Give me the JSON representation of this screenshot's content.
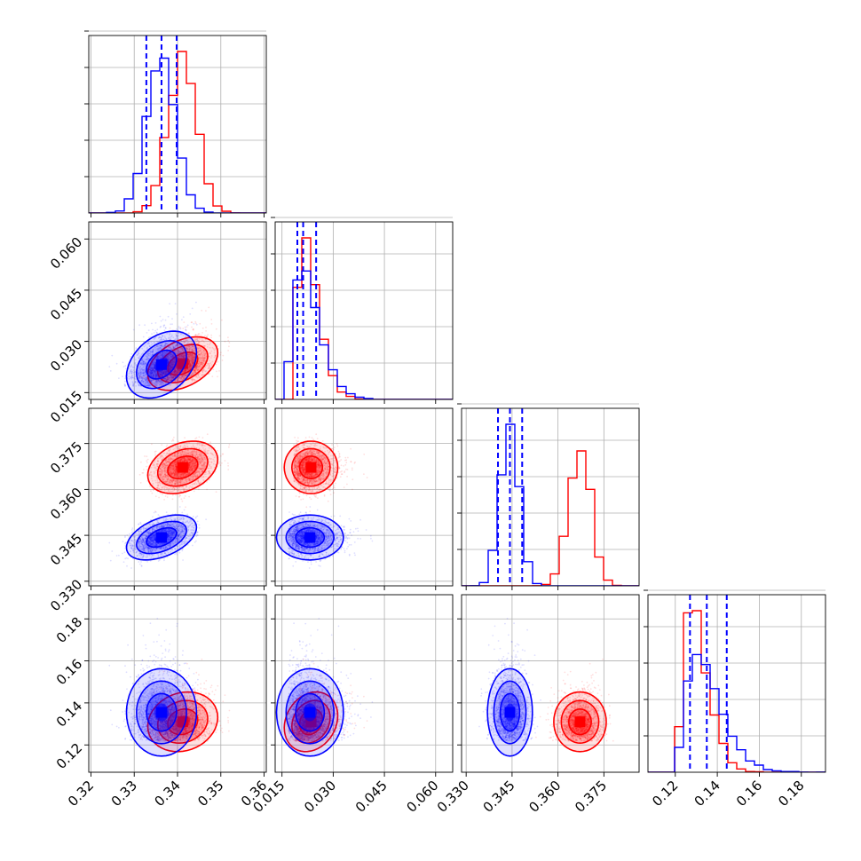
{
  "chart_data": {
    "type": "corner",
    "title": "",
    "colors": {
      "red": "#ff0000",
      "blue": "#0000ff"
    },
    "grid": true,
    "legend": "none",
    "series": [
      {
        "color": "#ff0000",
        "mean": [
          0.3412,
          0.0235,
          0.3672,
          0.131
        ],
        "std": [
          0.0033,
          0.0032,
          0.0035,
          0.0058
        ],
        "corr": [
          [
            1.0,
            0.4,
            0.3,
            0.15
          ],
          [
            0.4,
            1.0,
            0.0,
            0.2
          ],
          [
            0.3,
            0.0,
            1.0,
            0.0
          ],
          [
            0.15,
            0.2,
            0.0,
            1.0
          ]
        ]
      },
      {
        "color": "#0000ff",
        "mean": [
          0.3363,
          0.0232,
          0.3443,
          0.1355
        ],
        "std": [
          0.0033,
          0.004,
          0.003,
          0.0085
        ],
        "corr": [
          [
            1.0,
            0.35,
            0.45,
            0.0
          ],
          [
            0.35,
            1.0,
            0.0,
            0.0
          ],
          [
            0.45,
            0.0,
            1.0,
            0.0
          ],
          [
            0.0,
            0.0,
            0.0,
            1.0
          ]
        ]
      }
    ],
    "quantile_lines": [
      [
        0.3328,
        0.3363,
        0.3398
      ],
      [
        0.0195,
        0.0212,
        0.025
      ],
      [
        0.3404,
        0.3443,
        0.3483
      ],
      [
        0.127,
        0.135,
        0.1445
      ]
    ],
    "params": [
      {
        "range": [
          0.3195,
          0.3605
        ],
        "ticks": [
          0.32,
          0.33,
          0.34,
          0.35,
          0.36
        ],
        "tick_labels": [
          "0.32",
          "0.33",
          "0.34",
          "0.35",
          "0.36"
        ]
      },
      {
        "range": [
          0.013,
          0.065
        ],
        "ticks": [
          0.015,
          0.03,
          0.045,
          0.06
        ],
        "tick_labels": [
          "0.015",
          "0.030",
          "0.045",
          "0.060"
        ]
      },
      {
        "range": [
          0.3285,
          0.3865
        ],
        "ticks": [
          0.33,
          0.345,
          0.36,
          0.375
        ],
        "tick_labels": [
          "0.330",
          "0.345",
          "0.360",
          "0.375"
        ]
      },
      {
        "range": [
          0.107,
          0.1915
        ],
        "ticks": [
          0.12,
          0.14,
          0.16,
          0.18
        ],
        "tick_labels": [
          "0.12",
          "0.14",
          "0.16",
          "0.18"
        ]
      }
    ]
  }
}
